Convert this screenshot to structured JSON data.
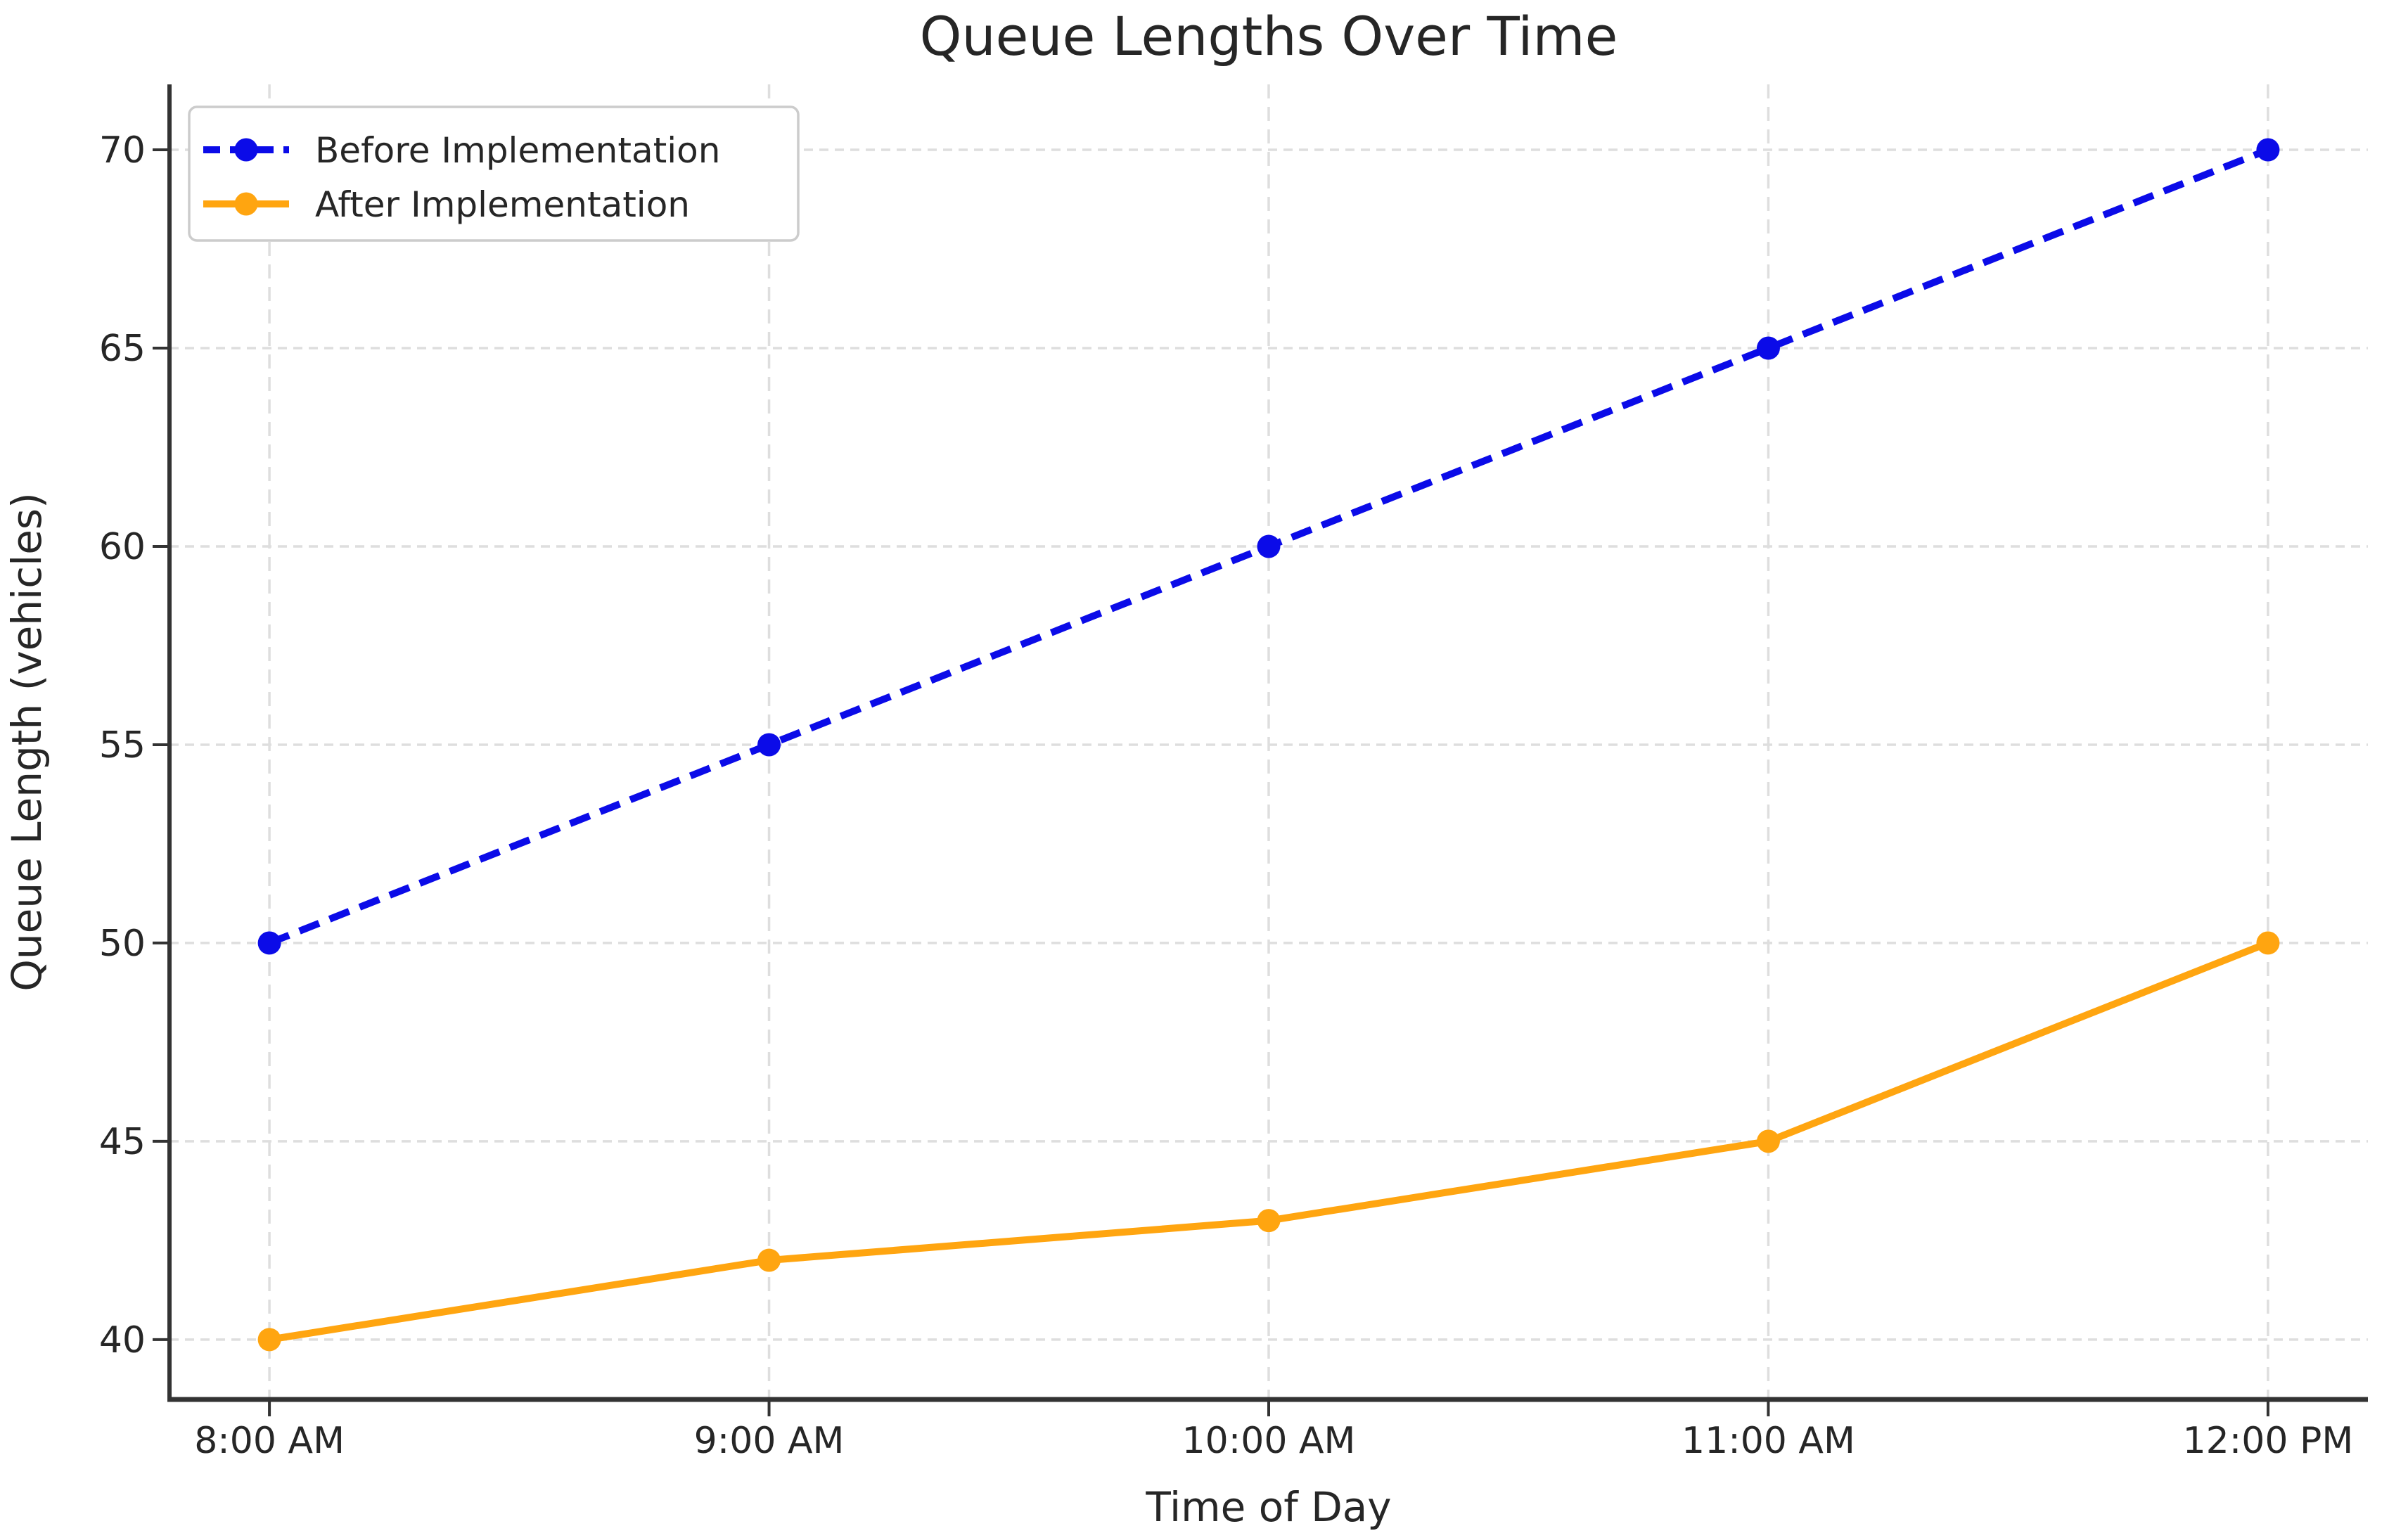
{
  "chart_data": {
    "type": "line",
    "title": "Queue Lengths Over Time",
    "xlabel": "Time of Day",
    "ylabel": "Queue Length (vehicles)",
    "categories": [
      "8:00 AM",
      "9:00 AM",
      "10:00 AM",
      "11:00 AM",
      "12:00 PM"
    ],
    "series": [
      {
        "name": "Before Implementation",
        "values": [
          50,
          55,
          60,
          65,
          70
        ],
        "color": "#0B0BE8",
        "line_style": "dashed",
        "marker": "circle"
      },
      {
        "name": "After Implementation",
        "values": [
          40,
          42,
          43,
          45,
          50
        ],
        "color": "#FFA510",
        "line_style": "solid",
        "marker": "circle"
      }
    ],
    "yticks": [
      40,
      45,
      50,
      55,
      60,
      65,
      70
    ],
    "ylim": [
      38.49,
      71.65
    ],
    "xlim": [
      -0.2,
      4.2
    ],
    "grid": true,
    "grid_style": "dashed",
    "legend_position": "upper left",
    "colors": {
      "background": "#FFFFFF",
      "grid": "#DEDEDE",
      "text": "#262626",
      "spine": "#333333",
      "legend_border": "#CCCCCC",
      "legend_background": "#FFFFFF"
    }
  }
}
